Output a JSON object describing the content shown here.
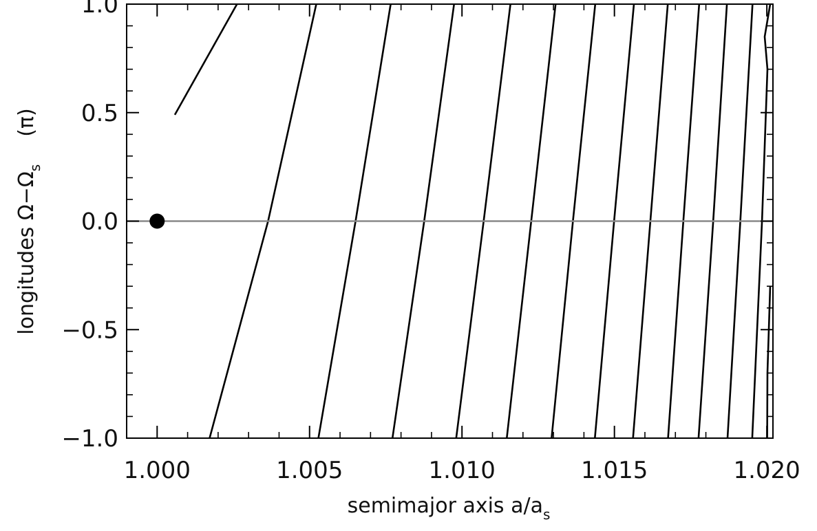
{
  "chart_data": {
    "type": "line",
    "title": "",
    "xlabel": "semimajor axis a/a",
    "xlabel_subscript": "s",
    "ylabel": "longitudes Ω−Ω",
    "ylabel_subscript": "s",
    "ylabel_unit": "(π)",
    "xlim": [
      0.999,
      1.0202
    ],
    "ylim": [
      -1.0,
      1.0
    ],
    "x_ticks": [
      1.0,
      1.005,
      1.01,
      1.015,
      1.02
    ],
    "x_tick_labels": [
      "1.000",
      "1.005",
      "1.010",
      "1.015",
      "1.020"
    ],
    "y_ticks": [
      -1.0,
      -0.5,
      0.0,
      0.5,
      1.0
    ],
    "y_tick_labels": [
      "−1.0",
      "−0.5",
      "0.0",
      "0.5",
      "1.0"
    ],
    "grid": false,
    "reference_line": {
      "y": 0.0,
      "color": "#888888"
    },
    "marker": {
      "x": 1.0,
      "y": 0.0,
      "color": "#000000"
    },
    "series": [
      {
        "x": [
          1.00058,
          1.00262
        ],
        "y": [
          0.49,
          1.0
        ]
      },
      {
        "x": [
          1.00172,
          1.00364,
          1.00522
        ],
        "y": [
          -1.0,
          0.0,
          1.0
        ]
      },
      {
        "x": [
          1.00529,
          1.00651,
          1.00766
        ],
        "y": [
          -1.0,
          0.0,
          1.0
        ]
      },
      {
        "x": [
          1.00772,
          1.00876,
          1.00974
        ],
        "y": [
          -1.0,
          0.0,
          1.0
        ]
      },
      {
        "x": [
          1.00981,
          1.01071,
          1.01159
        ],
        "y": [
          -1.0,
          0.0,
          1.0
        ]
      },
      {
        "x": [
          1.01147,
          1.01227,
          1.01307
        ],
        "y": [
          -1.0,
          0.0,
          1.0
        ]
      },
      {
        "x": [
          1.01294,
          1.01364,
          1.01437
        ],
        "y": [
          -1.0,
          0.0,
          1.0
        ]
      },
      {
        "x": [
          1.01436,
          1.01499,
          1.01564
        ],
        "y": [
          -1.0,
          0.0,
          1.0
        ]
      },
      {
        "x": [
          1.01561,
          1.01618,
          1.01675
        ],
        "y": [
          -1.0,
          0.0,
          1.0
        ]
      },
      {
        "x": [
          1.01676,
          1.01726,
          1.01778
        ],
        "y": [
          -1.0,
          0.0,
          1.0
        ]
      },
      {
        "x": [
          1.01776,
          1.01824,
          1.01869
        ],
        "y": [
          -1.0,
          0.0,
          1.0
        ]
      },
      {
        "x": [
          1.01871,
          1.01913,
          1.01953
        ],
        "y": [
          -1.0,
          0.0,
          1.0
        ]
      },
      {
        "x": [
          1.01952,
          1.01984,
          1.02002,
          1.01993,
          1.02011
        ],
        "y": [
          -1.0,
          0.0,
          0.7,
          0.85,
          1.0
        ]
      },
      {
        "x": [
          1.02001,
          1.02002,
          1.02011
        ],
        "y": [
          -1.0,
          -0.7,
          -0.3
        ]
      }
    ]
  }
}
